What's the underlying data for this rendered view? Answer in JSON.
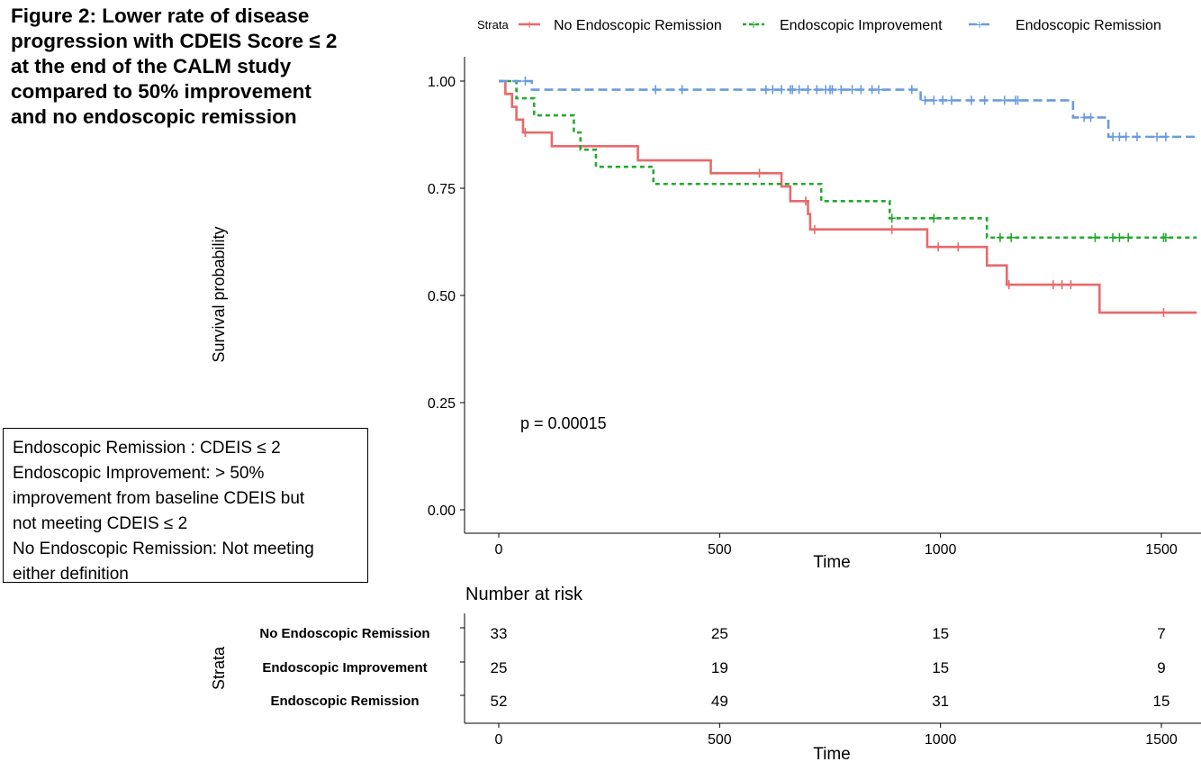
{
  "figure_caption": "Figure 2: Lower rate of disease\nprogression  with CDEIS Score ≤ 2\nat the end of the CALM study\ncompared to 50% improvement\nand no endoscopic  remission",
  "definitions": [
    "Endoscopic Remission : CDEIS ≤ 2",
    "Endoscopic Improvement: > 50%",
    "improvement from baseline CDEIS but",
    "not meeting CDEIS ≤ 2",
    "No Endoscopic Remission: Not meeting",
    "either definition"
  ],
  "colors": {
    "no_remission": "#e8696b",
    "improvement": "#22a92e",
    "remission": "#6a9be0"
  },
  "chart_data": [
    {
      "type": "line",
      "subtype": "kaplan-meier",
      "xlabel": "Time",
      "ylabel": "Survival probability",
      "xlim": [
        0,
        1580
      ],
      "ylim": [
        0,
        1
      ],
      "x_ticks": [
        0,
        500,
        1000,
        1500
      ],
      "y_ticks": [
        "0.00",
        "0.25",
        "0.50",
        "0.75",
        "1.00"
      ],
      "legend_title": "Strata",
      "legend_position": "top",
      "annotation": "p = 0.00015",
      "series": [
        {
          "name": "No Endoscopic Remission",
          "line_style": "solid",
          "steps": [
            [
              0,
              1.0
            ],
            [
              15,
              0.97
            ],
            [
              30,
              0.94
            ],
            [
              40,
              0.91
            ],
            [
              55,
              0.88
            ],
            [
              120,
              0.848
            ],
            [
              315,
              0.815
            ],
            [
              480,
              0.785
            ],
            [
              640,
              0.754
            ],
            [
              660,
              0.72
            ],
            [
              700,
              0.69
            ],
            [
              705,
              0.654
            ],
            [
              970,
              0.613
            ],
            [
              1105,
              0.57
            ],
            [
              1150,
              0.525
            ],
            [
              1360,
              0.46
            ],
            [
              1580,
              0.46
            ]
          ],
          "censor_times": [
            60,
            590,
            695,
            715,
            890,
            995,
            1040,
            1155,
            1255,
            1275,
            1295,
            1505
          ]
        },
        {
          "name": "Endoscopic Improvement",
          "line_style": "dotted",
          "steps": [
            [
              0,
              1.0
            ],
            [
              40,
              0.96
            ],
            [
              80,
              0.92
            ],
            [
              170,
              0.88
            ],
            [
              185,
              0.84
            ],
            [
              220,
              0.8
            ],
            [
              350,
              0.76
            ],
            [
              730,
              0.72
            ],
            [
              885,
              0.68
            ],
            [
              1105,
              0.635
            ],
            [
              1580,
              0.635
            ]
          ],
          "censor_times": [
            890,
            985,
            1135,
            1160,
            1350,
            1390,
            1405,
            1425,
            1505,
            1510
          ]
        },
        {
          "name": "Endoscopic Remission",
          "line_style": "dashed",
          "steps": [
            [
              0,
              1.0
            ],
            [
              75,
              0.98
            ],
            [
              955,
              0.955
            ],
            [
              1300,
              0.915
            ],
            [
              1380,
              0.87
            ],
            [
              1580,
              0.87
            ]
          ],
          "censor_times": [
            60,
            355,
            415,
            605,
            620,
            640,
            660,
            665,
            680,
            700,
            720,
            740,
            750,
            755,
            775,
            800,
            820,
            845,
            860,
            935,
            965,
            985,
            1005,
            1025,
            1070,
            1100,
            1145,
            1170,
            1175,
            1325,
            1340,
            1390,
            1405,
            1420,
            1445,
            1490,
            1510
          ]
        }
      ]
    },
    {
      "type": "table",
      "title": "Number at risk",
      "xlabel": "Time",
      "ylabel": "Strata",
      "x_ticks": [
        0,
        500,
        1000,
        1500
      ],
      "rows": [
        {
          "name": "No Endoscopic Remission",
          "values": [
            33,
            25,
            15,
            7
          ]
        },
        {
          "name": "Endoscopic Improvement",
          "values": [
            25,
            19,
            15,
            9
          ]
        },
        {
          "name": "Endoscopic Remission",
          "values": [
            52,
            49,
            31,
            15
          ]
        }
      ]
    }
  ]
}
